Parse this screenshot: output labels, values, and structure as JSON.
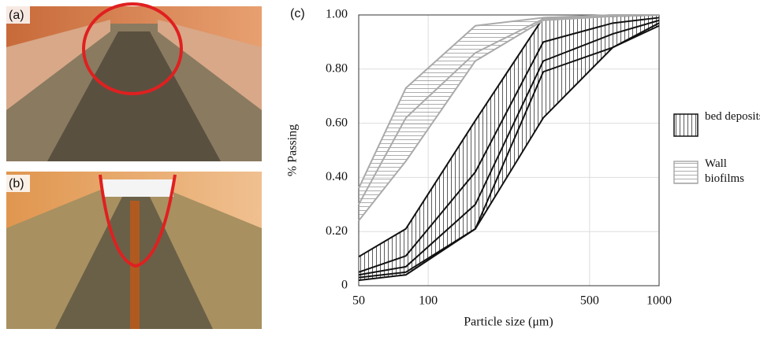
{
  "panel_labels": [
    "(a)",
    "(b)"
  ],
  "chart_data": {
    "type": "line",
    "panel_label": "(c)",
    "x_label": "Particle size (μm)",
    "y_label": "% Passing",
    "x": [
      50,
      80,
      160,
      315,
      630,
      1000
    ],
    "xlim": [
      50,
      1000
    ],
    "xticks": [
      50,
      100,
      500,
      1000
    ],
    "log_x": true,
    "ylim": [
      0,
      1
    ],
    "yticks": [
      0,
      {
        "value": 0.2,
        "label": "0.20"
      },
      {
        "value": 0.4,
        "label": "0.40"
      },
      {
        "value": 0.6,
        "label": "0.60"
      },
      {
        "value": 0.8,
        "label": "0.80"
      },
      {
        "value": 1,
        "label": "1.00"
      }
    ],
    "grid": true,
    "groups": [
      {
        "name": "bed deposits",
        "color": "#111111",
        "hatch": "vertical",
        "series": [
          {
            "values": [
              0.107,
              0.21,
              0.61,
              0.99,
              0.995,
              1.0
            ]
          },
          {
            "values": [
              0.05,
              0.11,
              0.42,
              0.9,
              0.97,
              0.99
            ]
          },
          {
            "values": [
              0.04,
              0.07,
              0.3,
              0.83,
              0.93,
              0.98
            ]
          },
          {
            "values": [
              0.03,
              0.05,
              0.21,
              0.79,
              0.88,
              0.97
            ]
          },
          {
            "values": [
              0.02,
              0.04,
              0.21,
              0.62,
              0.88,
              0.96
            ]
          }
        ]
      },
      {
        "name": "Wall biofilms",
        "color": "#aaaaaa",
        "hatch": "horizontal",
        "series": [
          {
            "values": [
              0.36,
              0.73,
              0.96,
              0.99,
              1.0,
              1.0
            ]
          },
          {
            "values": [
              0.3,
              0.62,
              0.86,
              0.985,
              1.0,
              1.0
            ]
          },
          {
            "values": [
              0.24,
              0.46,
              0.83,
              0.98,
              0.995,
              1.0
            ]
          }
        ]
      }
    ]
  }
}
